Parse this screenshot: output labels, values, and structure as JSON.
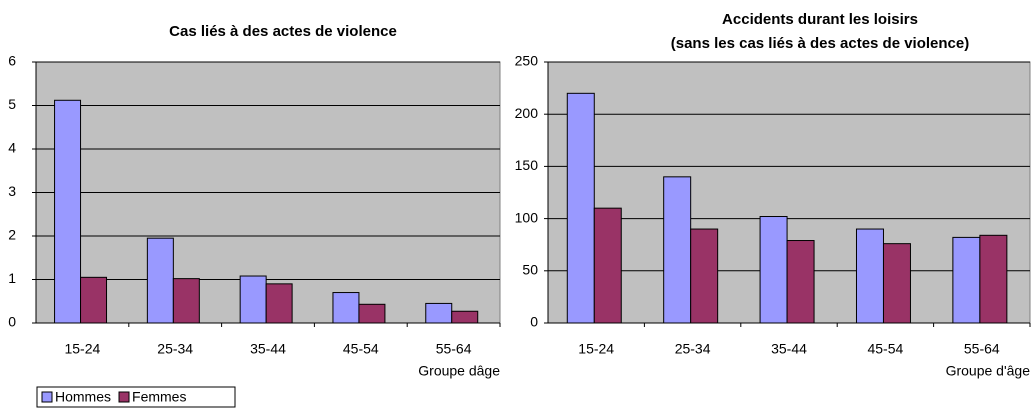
{
  "chart_data": [
    {
      "type": "bar",
      "title": [
        "Cas liés à des actes de violence"
      ],
      "categories": [
        "15-24",
        "25-34",
        "35-44",
        "45-54",
        "55-64"
      ],
      "x_label": "Groupe dâge",
      "series": [
        {
          "name": "Hommes",
          "color": "#9999ff",
          "values": [
            5.12,
            1.95,
            1.08,
            0.7,
            0.45
          ]
        },
        {
          "name": "Femmes",
          "color": "#993366",
          "values": [
            1.05,
            1.02,
            0.9,
            0.43,
            0.27
          ]
        }
      ],
      "ylim": [
        0,
        6
      ],
      "yticks": [
        0,
        1,
        2,
        3,
        4,
        5,
        6
      ],
      "grid": true,
      "legend": "bottom"
    },
    {
      "type": "bar",
      "title": [
        "Accidents durant les loisirs",
        "(sans les cas liés à des actes de violence)"
      ],
      "categories": [
        "15-24",
        "25-34",
        "35-44",
        "45-54",
        "55-64"
      ],
      "x_label": "Groupe d'âge",
      "series": [
        {
          "color": "#9999ff",
          "values": [
            220,
            140,
            102,
            90,
            82
          ]
        },
        {
          "color": "#993366",
          "values": [
            110,
            90,
            79,
            76,
            84
          ]
        }
      ],
      "ylim": [
        0,
        250
      ],
      "yticks": [
        0,
        50,
        100,
        150,
        200,
        250
      ],
      "grid": true
    }
  ]
}
